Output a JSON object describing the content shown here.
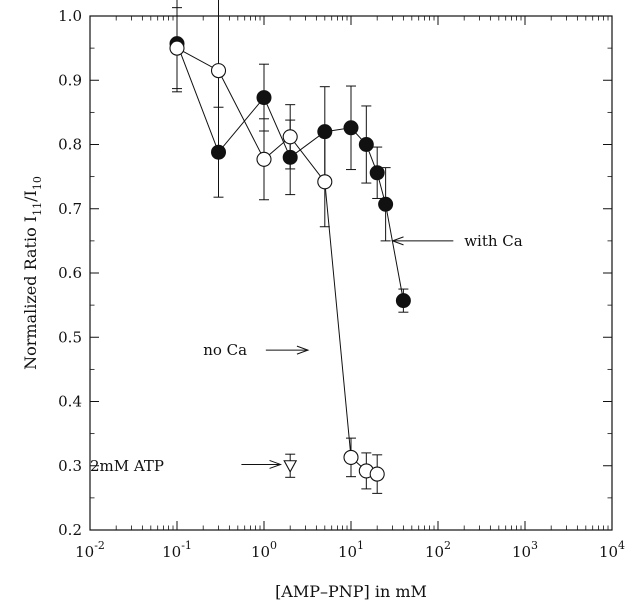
{
  "chart_data": {
    "type": "scatter",
    "xscale": "log",
    "xlim": [
      0.01,
      10000
    ],
    "ylim": [
      0.2,
      1.0
    ],
    "xlabel": "[AMP–PNP] in mM",
    "ylabel_main": "Normalized Ratio  I",
    "ylabel_sub1": "11",
    "ylabel_mid": "/I",
    "ylabel_sub2": "10",
    "x_tick_base": "10",
    "x_tick_exponents": [
      "-2",
      "-1",
      "0",
      "1",
      "2",
      "3",
      "4"
    ],
    "y_tick_labels": [
      "0.2",
      "0.3",
      "0.4",
      "0.5",
      "0.6",
      "0.7",
      "0.8",
      "0.9",
      "1.0"
    ],
    "grid": false,
    "series": [
      {
        "key": "with-ca",
        "marker": "filled-circle",
        "connected": true,
        "points": [
          {
            "x": 0.1,
            "y": 0.957,
            "err": 0.075
          },
          {
            "x": 0.3,
            "y": 0.788,
            "err": 0.07
          },
          {
            "x": 1.0,
            "y": 0.873,
            "err": 0.052
          },
          {
            "x": 2.0,
            "y": 0.78,
            "err": 0.058
          },
          {
            "x": 5.0,
            "y": 0.82,
            "err": 0.07
          },
          {
            "x": 10.0,
            "y": 0.826,
            "err": 0.065
          },
          {
            "x": 15.0,
            "y": 0.8,
            "err": 0.06
          },
          {
            "x": 20.0,
            "y": 0.756,
            "err": 0.04
          },
          {
            "x": 25.0,
            "y": 0.707,
            "err": 0.057
          },
          {
            "x": 40.0,
            "y": 0.557,
            "err": 0.018
          }
        ]
      },
      {
        "key": "no-ca",
        "marker": "open-circle",
        "connected": true,
        "points": [
          {
            "x": 0.1,
            "y": 0.95,
            "err": 0.063
          },
          {
            "x": 0.3,
            "y": 0.915,
            "err": 0.12
          },
          {
            "x": 1.0,
            "y": 0.777,
            "err": 0.063
          },
          {
            "x": 2.0,
            "y": 0.812,
            "err": 0.05
          },
          {
            "x": 5.0,
            "y": 0.742,
            "err": 0.07
          },
          {
            "x": 10.0,
            "y": 0.313,
            "err": 0.03
          },
          {
            "x": 15.0,
            "y": 0.292,
            "err": 0.028
          },
          {
            "x": 20.0,
            "y": 0.287,
            "err": 0.03
          }
        ]
      },
      {
        "key": "atp",
        "marker": "open-triangle-down",
        "connected": false,
        "points": [
          {
            "x": 2.0,
            "y": 0.3,
            "err": 0.018
          }
        ]
      }
    ],
    "annotations": [
      {
        "key": "with-ca",
        "text": "with Ca",
        "tx": 200,
        "ty": 0.65,
        "ax_from": 150,
        "ax_to": 30,
        "ay": 0.65
      },
      {
        "key": "no-ca",
        "text": "no Ca",
        "tx": 0.2,
        "ty": 0.48,
        "ax_from": 1.05,
        "ax_to": 3.2,
        "ay": 0.48
      },
      {
        "key": "atp",
        "text": "2mM ATP",
        "tx": 0.01,
        "ty": 0.3,
        "ax_from": 0.55,
        "ax_to": 1.55,
        "ay": 0.302
      }
    ]
  }
}
